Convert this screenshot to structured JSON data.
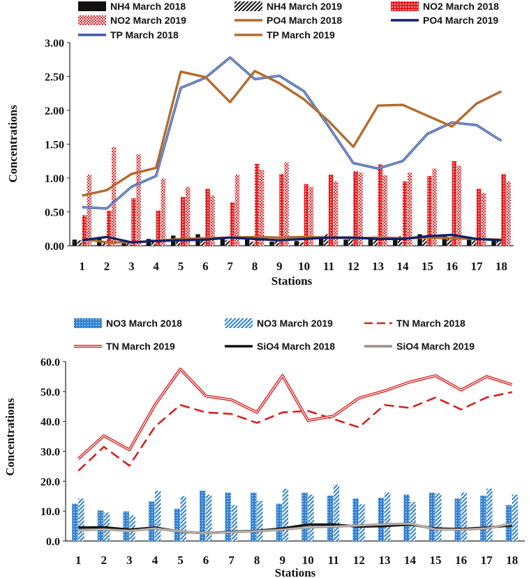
{
  "chart_data": [
    {
      "type": "bar+line",
      "title": "",
      "xlabel": "Stations",
      "ylabel": "Concentrations",
      "ylim": [
        0,
        3
      ],
      "yticks": [
        "0.00",
        "0.50",
        "1.00",
        "1.50",
        "2.00",
        "2.50",
        "3.00"
      ],
      "categories": [
        "1",
        "2",
        "3",
        "4",
        "5",
        "6",
        "7",
        "8",
        "9",
        "10",
        "11",
        "12",
        "13",
        "14",
        "15",
        "16",
        "17",
        "18"
      ],
      "series": [
        {
          "name": "NH4 March 2018",
          "kind": "bar",
          "color": "#111111",
          "pattern": "solid",
          "values": [
            0.09,
            0.11,
            0.06,
            0.1,
            0.15,
            0.17,
            0.12,
            0.09,
            0.06,
            0.07,
            0.11,
            0.09,
            0.12,
            0.09,
            0.17,
            0.14,
            0.13,
            0.09
          ]
        },
        {
          "name": "NH4 March 2019",
          "kind": "bar",
          "color": "#111111",
          "pattern": "diag",
          "values": [
            0.08,
            0.07,
            0.05,
            0.09,
            0.08,
            0.1,
            0.08,
            0.06,
            0.08,
            0.05,
            0.17,
            0.1,
            0.09,
            0.14,
            0.1,
            0.1,
            0.08,
            0.08
          ]
        },
        {
          "name": "NO2 March 2018",
          "kind": "bar",
          "color": "#e41a1c",
          "pattern": "dots",
          "values": [
            0.45,
            0.52,
            0.7,
            0.52,
            0.72,
            0.84,
            0.64,
            1.21,
            1.06,
            0.91,
            1.05,
            1.1,
            1.2,
            0.95,
            1.03,
            1.25,
            0.84,
            1.06
          ]
        },
        {
          "name": "NO2 March 2019",
          "kind": "bar",
          "color": "#e41a1c",
          "pattern": "check",
          "values": [
            1.05,
            1.46,
            1.35,
            0.99,
            0.87,
            0.74,
            1.05,
            1.12,
            1.23,
            0.87,
            0.95,
            1.08,
            1.04,
            1.08,
            1.14,
            1.18,
            0.78,
            0.95
          ]
        },
        {
          "name": "PO4 March 2018",
          "kind": "line",
          "color": "#b36b2c",
          "values": [
            0.1,
            0.05,
            0.05,
            0.07,
            0.1,
            0.11,
            0.12,
            0.13,
            0.12,
            0.13,
            0.12,
            0.11,
            0.12,
            0.11,
            0.12,
            0.11,
            0.1,
            0.09
          ]
        },
        {
          "name": "PO4 March 2019",
          "kind": "line",
          "color": "#10206a",
          "values": [
            0.08,
            0.13,
            0.05,
            0.07,
            0.08,
            0.09,
            0.12,
            0.1,
            0.08,
            0.1,
            0.12,
            0.12,
            0.1,
            0.1,
            0.14,
            0.16,
            0.1,
            0.08
          ]
        },
        {
          "name": "TP March 2018",
          "kind": "line",
          "color": "#3a5aa8",
          "values": [
            0.57,
            0.55,
            0.87,
            1.03,
            2.33,
            2.48,
            2.78,
            2.46,
            2.51,
            2.28,
            1.76,
            1.22,
            1.14,
            1.25,
            1.65,
            1.82,
            1.78,
            1.55
          ]
        },
        {
          "name": "TP March 2019",
          "kind": "line",
          "color": "#b36b2c",
          "values": [
            0.74,
            0.82,
            1.06,
            1.15,
            2.57,
            2.49,
            2.12,
            2.58,
            2.4,
            2.16,
            1.84,
            1.46,
            2.07,
            2.08,
            1.92,
            1.76,
            2.1,
            2.28
          ]
        }
      ]
    },
    {
      "type": "bar+line",
      "title": "",
      "xlabel": "Stations",
      "ylabel": "Concentrations",
      "ylim": [
        0,
        60
      ],
      "yticks": [
        "0.0",
        "10.0",
        "20.0",
        "30.0",
        "40.0",
        "50.0",
        "60.0"
      ],
      "categories": [
        "1",
        "2",
        "3",
        "4",
        "5",
        "6",
        "7",
        "8",
        "9",
        "10",
        "11",
        "12",
        "13",
        "14",
        "15",
        "16",
        "17",
        "18"
      ],
      "series": [
        {
          "name": "NO3 March 2018",
          "kind": "bar",
          "color": "#2e7fd0",
          "pattern": "dots",
          "values": [
            12.5,
            10.2,
            9.9,
            13.2,
            10.8,
            16.8,
            16.2,
            16.2,
            12.5,
            16.2,
            15.2,
            14.2,
            14.5,
            15.5,
            16.2,
            14.2,
            15.2,
            12.0
          ]
        },
        {
          "name": "NO3 March 2019",
          "kind": "bar",
          "color": "#2e7fd0",
          "pattern": "diag",
          "values": [
            14.2,
            9.5,
            8.6,
            16.8,
            15.0,
            15.5,
            12.0,
            13.4,
            17.5,
            15.5,
            18.8,
            12.3,
            16.2,
            13.0,
            16.0,
            16.2,
            17.5,
            15.5
          ]
        },
        {
          "name": "TN  March 2018",
          "kind": "line",
          "color": "#d62020",
          "dash": "dashed",
          "values": [
            23.5,
            31.5,
            25.2,
            38.2,
            45.5,
            43.0,
            42.5,
            39.5,
            43.0,
            43.5,
            40.8,
            38.0,
            45.5,
            44.5,
            48.0,
            44.0,
            48.0,
            49.8
          ]
        },
        {
          "name": "TN  March 2019",
          "kind": "line",
          "color": "#d62020",
          "dash": "double",
          "values": [
            27.5,
            35.2,
            30.5,
            45.5,
            57.5,
            48.5,
            47.2,
            43.0,
            55.3,
            40.3,
            41.8,
            47.8,
            50.2,
            53.2,
            55.3,
            50.5,
            55.0,
            52.3
          ]
        },
        {
          "name": "SiO4 March 2018",
          "kind": "line",
          "color": "#111111",
          "values": [
            4.5,
            4.6,
            3.8,
            4.5,
            3.1,
            2.6,
            3.1,
            3.4,
            4.2,
            5.5,
            5.5,
            4.8,
            5.0,
            5.5,
            4.2,
            4.0,
            4.5,
            5.2
          ]
        },
        {
          "name": "SiO4 March 2019",
          "kind": "line",
          "color": "#9b8e86",
          "values": [
            3.6,
            3.9,
            3.4,
            4.2,
            3.2,
            2.6,
            3.0,
            3.3,
            3.8,
            4.6,
            4.8,
            5.2,
            5.6,
            5.8,
            3.9,
            3.8,
            4.2,
            5.8
          ]
        }
      ]
    }
  ]
}
